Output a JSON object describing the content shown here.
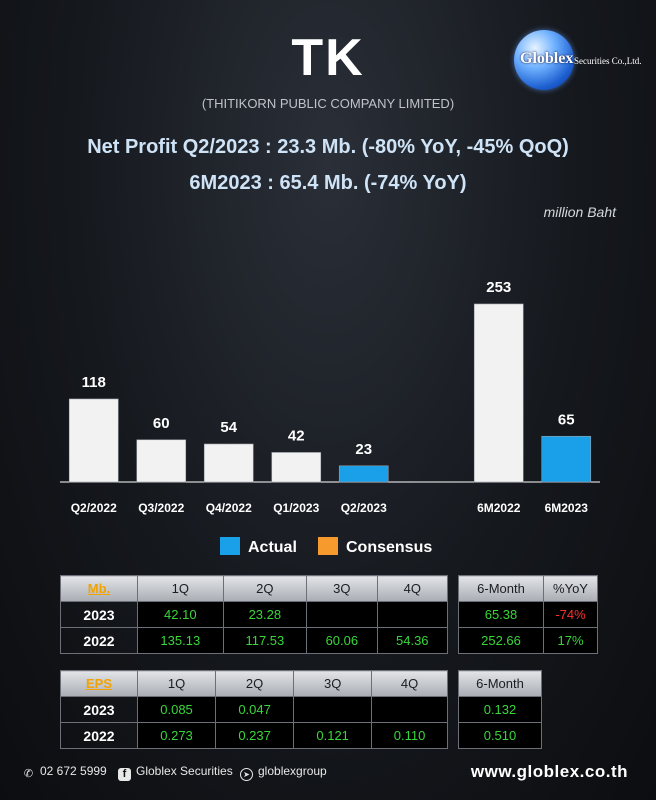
{
  "header": {
    "ticker": "TK",
    "company": "(THITIKORN PUBLIC COMPANY LIMITED)",
    "logo_text": "Globlex",
    "logo_sub": "Securities Co.,Ltd.",
    "line1": "Net Profit  Q2/2023 : 23.3 Mb. (-80% YoY, -45% QoQ)",
    "line2": "6M2023 : 65.4 Mb. (-74% YoY)",
    "unit": "million Baht"
  },
  "chart_data": {
    "type": "bar",
    "categories": [
      "Q2/2022",
      "Q3/2022",
      "Q4/2022",
      "Q1/2023",
      "Q2/2023",
      "",
      "6M2022",
      "6M2023"
    ],
    "values": [
      118,
      60,
      54,
      42,
      23,
      null,
      253,
      65
    ],
    "data_labels": [
      "118",
      "60",
      "54",
      "42",
      "23",
      "",
      "253",
      "65"
    ],
    "highlight": [
      false,
      false,
      false,
      false,
      true,
      false,
      false,
      true
    ],
    "ylim": [
      0,
      270
    ],
    "colors": {
      "default": "#f2f2f2",
      "actual": "#1aa0e8",
      "consensus": "#f79a2e"
    },
    "legend": [
      "Actual",
      "Consensus"
    ],
    "legend_placement": "bottom-center"
  },
  "table_mb": {
    "corner": "Mb.",
    "headers": [
      "1Q",
      "2Q",
      "3Q",
      "4Q"
    ],
    "rows": [
      {
        "label": "2023",
        "cells": [
          "42.10",
          "23.28",
          "",
          ""
        ]
      },
      {
        "label": "2022",
        "cells": [
          "135.13",
          "117.53",
          "60.06",
          "54.36"
        ]
      }
    ]
  },
  "table_mb_6m": {
    "headers": [
      "6-Month",
      "%YoY"
    ],
    "rows": [
      [
        "65.38",
        "-74%"
      ],
      [
        "252.66",
        "17%"
      ]
    ]
  },
  "table_eps": {
    "corner": "EPS",
    "headers": [
      "1Q",
      "2Q",
      "3Q",
      "4Q"
    ],
    "rows": [
      {
        "label": "2023",
        "cells": [
          "0.085",
          "0.047",
          "",
          ""
        ]
      },
      {
        "label": "2022",
        "cells": [
          "0.273",
          "0.237",
          "0.121",
          "0.110"
        ]
      }
    ]
  },
  "table_eps_6m": {
    "headers": [
      "6-Month"
    ],
    "rows": [
      [
        "0.132"
      ],
      [
        "0.510"
      ]
    ]
  },
  "footer": {
    "phone": "02 672 5999",
    "facebook": "Globlex Securities",
    "telegram": "globlexgroup",
    "website": "www.globlex.co.th"
  }
}
